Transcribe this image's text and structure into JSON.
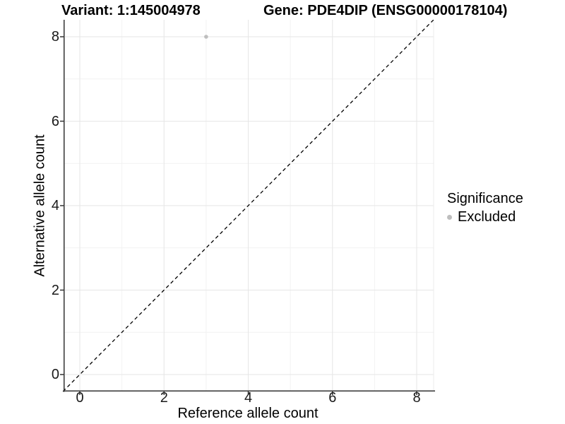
{
  "chart_data": {
    "type": "scatter",
    "title_left": "Variant: 1:145004978",
    "title_right": "Gene: PDE4DIP (ENSG00000178104)",
    "xlabel": "Reference allele count",
    "ylabel": "Alternative allele count",
    "xlim": [
      -0.4,
      8.4
    ],
    "ylim": [
      -0.4,
      8.4
    ],
    "x_ticks": [
      0,
      2,
      4,
      6,
      8
    ],
    "y_ticks": [
      0,
      2,
      4,
      6,
      8
    ],
    "x_minor_ticks": [
      1,
      3,
      5,
      7
    ],
    "y_minor_ticks": [
      1,
      3,
      5,
      7
    ],
    "grid": true,
    "identity_line": {
      "style": "dashed",
      "color": "#000000",
      "from": [
        -0.4,
        -0.4
      ],
      "to": [
        8.4,
        8.4
      ]
    },
    "series": [
      {
        "name": "Excluded",
        "color": "#bebebe",
        "point_radius": 2.8,
        "points": [
          {
            "x": 3,
            "y": 8
          }
        ]
      }
    ],
    "legend": {
      "title": "Significance",
      "position": "right",
      "items": [
        {
          "label": "Excluded",
          "color": "#bebebe"
        }
      ]
    },
    "colors": {
      "axis_line": "#333333",
      "tick_mark": "#333333",
      "tick_label": "#1a1a1a",
      "grid_major": "#e6e6e6",
      "grid_minor": "#f2f2f2",
      "panel_edge": "#ebebeb",
      "background": "#ffffff"
    }
  }
}
